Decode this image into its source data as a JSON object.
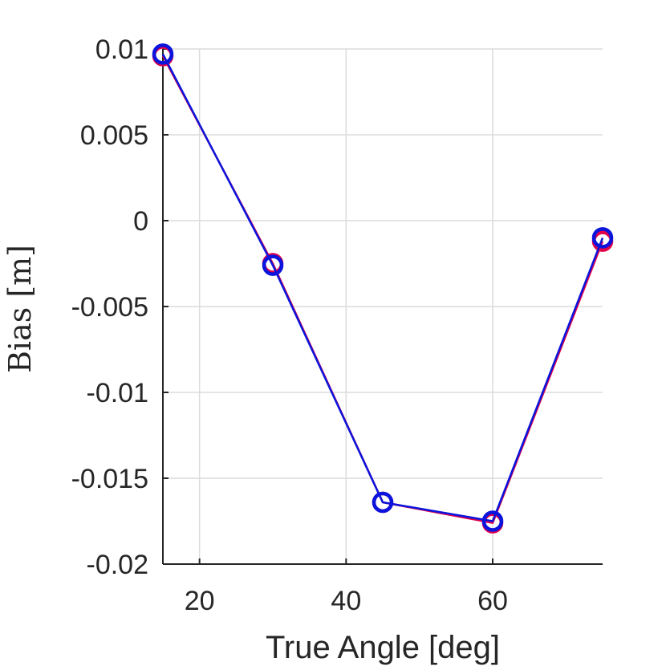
{
  "chart_data": {
    "type": "line",
    "title": "",
    "xlabel": "True Angle [deg]",
    "ylabel": "Bias [m]",
    "xlim": [
      15,
      75
    ],
    "ylim": [
      -0.02,
      0.01
    ],
    "xticks": [
      20,
      40,
      60
    ],
    "xtick_labels": [
      "20",
      "40",
      "60"
    ],
    "yticks": [
      0.01,
      0.005,
      0,
      -0.005,
      -0.01,
      -0.015,
      -0.02
    ],
    "ytick_labels": [
      "0.01",
      "0.005",
      "0",
      "-0.005",
      "-0.01",
      "-0.015",
      "-0.02"
    ],
    "grid": true,
    "x": [
      15,
      30,
      45,
      60,
      75
    ],
    "series": [
      {
        "color": "#e0004a",
        "marker": "circle",
        "values": [
          0.0096,
          -0.0025,
          -0.0164,
          -0.0176,
          -0.0012
        ]
      },
      {
        "color": "#0a14dc",
        "marker": "circle",
        "values": [
          0.0097,
          -0.0026,
          -0.0164,
          -0.0175,
          -0.001
        ]
      }
    ]
  }
}
